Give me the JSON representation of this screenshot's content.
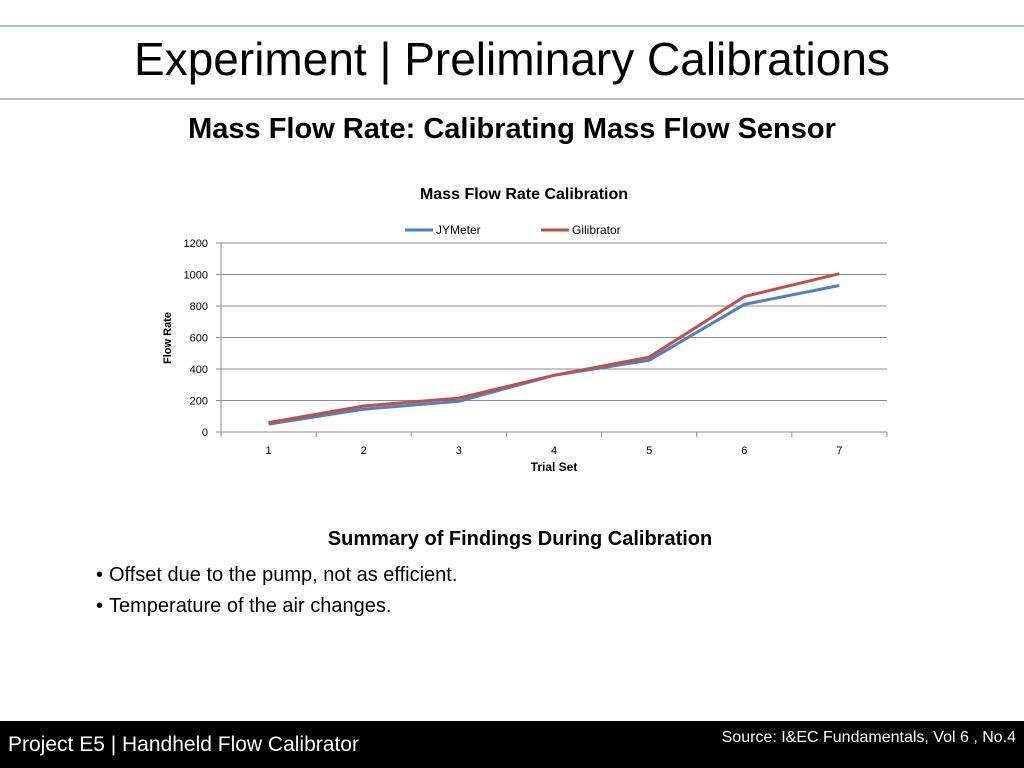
{
  "slide": {
    "title": "Experiment | Preliminary Calibrations",
    "subtitle": "Mass Flow Rate: Calibrating Mass Flow Sensor"
  },
  "chart_data": {
    "type": "line",
    "title": "Mass Flow Rate Calibration",
    "xlabel": "Trial Set",
    "ylabel": "Flow Rate",
    "categories": [
      "1",
      "2",
      "3",
      "4",
      "5",
      "6",
      "7"
    ],
    "ylim": [
      0,
      1200
    ],
    "yticks": [
      0,
      200,
      400,
      600,
      800,
      1000,
      1200
    ],
    "grid": true,
    "legend": "top",
    "series": [
      {
        "name": "JYMeter",
        "color": "#4f81bd",
        "values": [
          50,
          145,
          195,
          360,
          455,
          810,
          930
        ]
      },
      {
        "name": "Gilibrator",
        "color": "#c0504d",
        "values": [
          60,
          165,
          215,
          360,
          475,
          860,
          1005
        ]
      }
    ]
  },
  "summary": {
    "heading": "Summary of Findings During Calibration",
    "bullets": [
      "Offset due to the pump, not as efficient.",
      "Temperature of the air changes."
    ]
  },
  "footer": {
    "project": "Project E5 | Handheld Flow Calibrator",
    "source": "Source:  I&EC Fundamentals, Vol 6 , No.4"
  }
}
